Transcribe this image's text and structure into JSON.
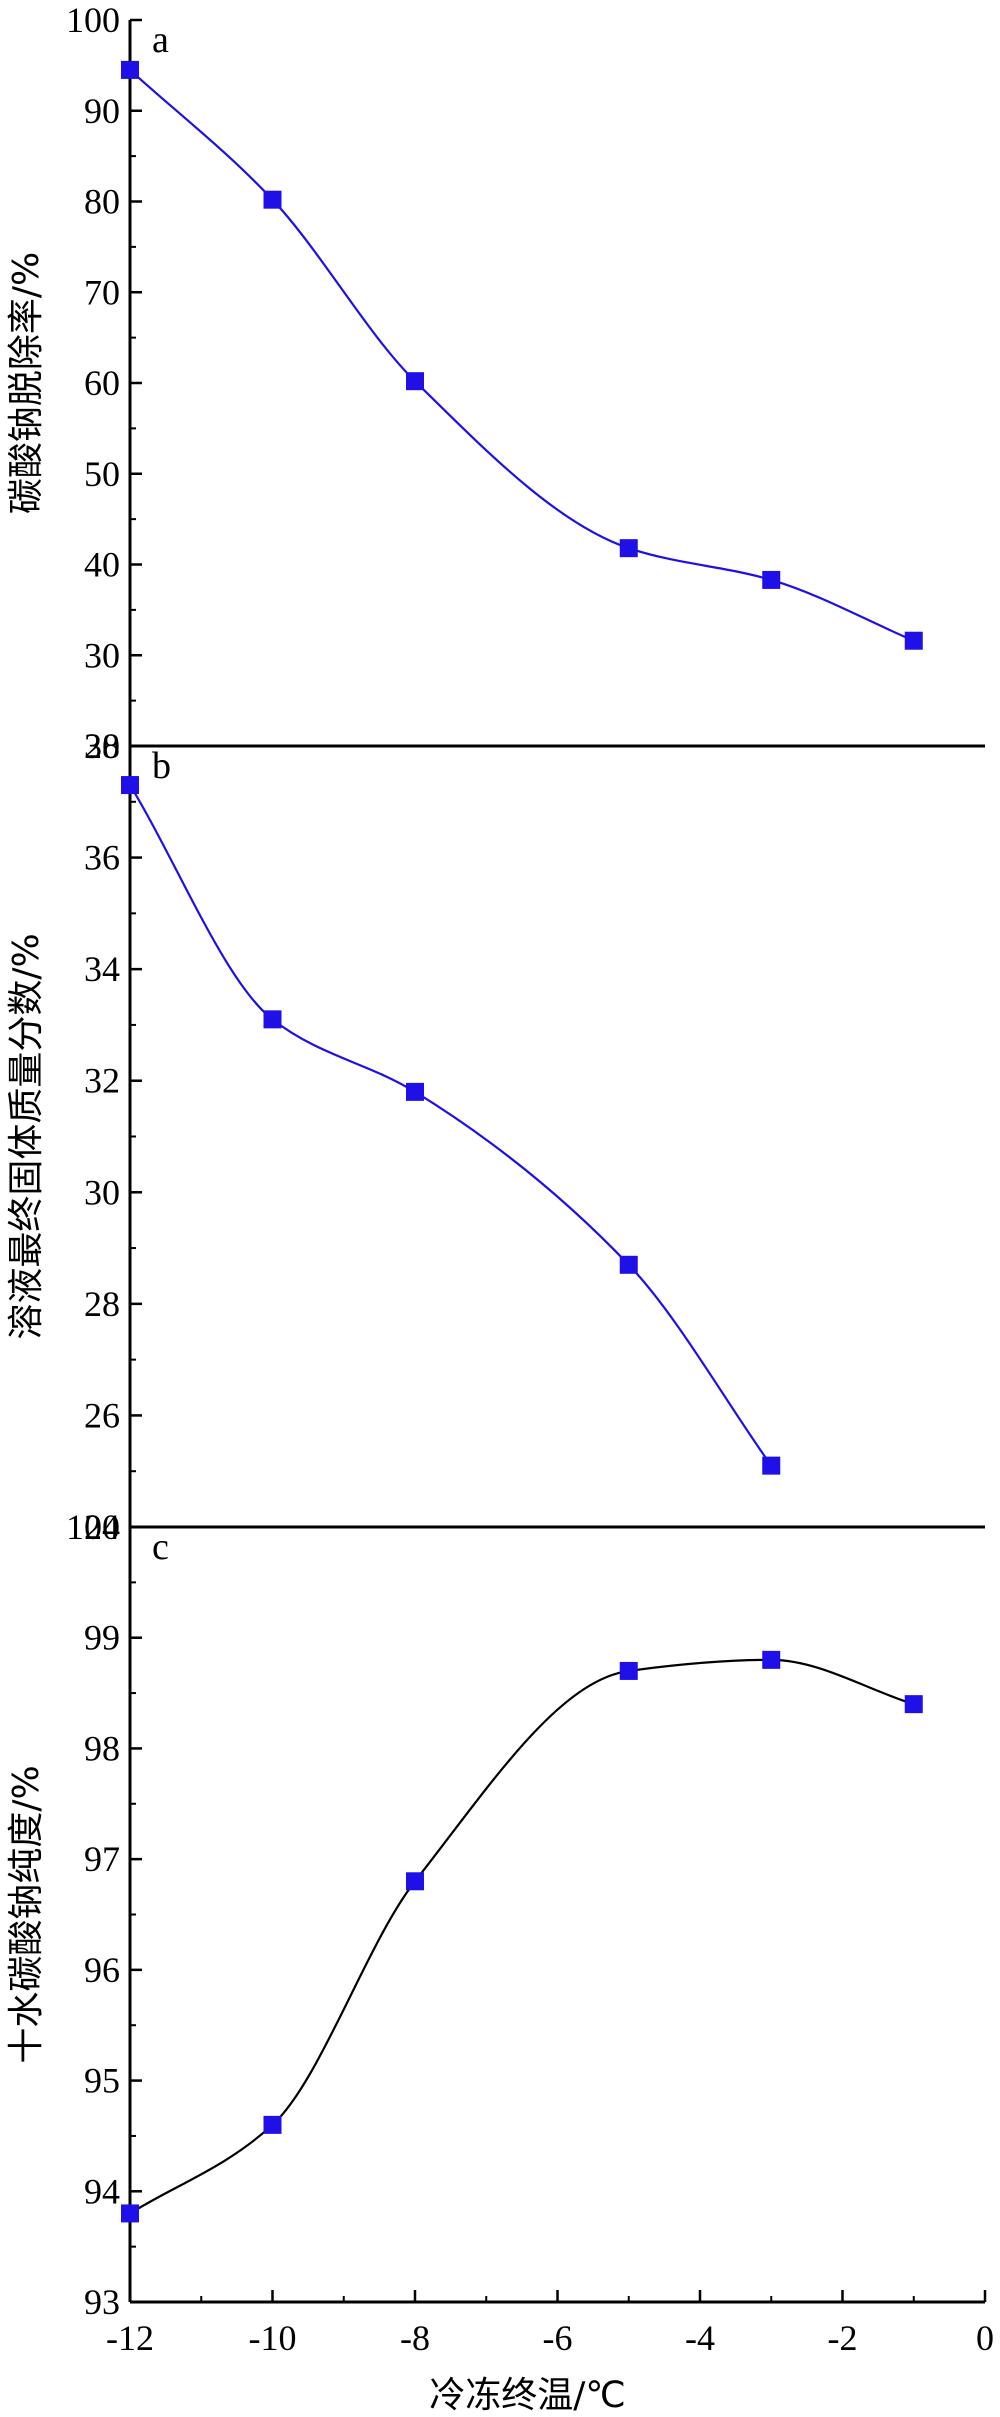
{
  "chart_data": [
    {
      "type": "scatter",
      "panel_label": "a",
      "ylabel": "碳酸钠脱除率/%",
      "xlim": [
        -12,
        0
      ],
      "ylim": [
        20,
        100
      ],
      "yticks": [
        20,
        30,
        40,
        50,
        60,
        70,
        80,
        90,
        100
      ],
      "x": [
        -12,
        -10,
        -8,
        -5,
        -3,
        -1
      ],
      "y": [
        94.5,
        80.2,
        60.2,
        41.8,
        38.3,
        31.6
      ],
      "marker_color": "#1f10e8",
      "curve_color": "#1f10e8",
      "fit_curve": true
    },
    {
      "type": "scatter",
      "panel_label": "b",
      "ylabel": "溶液最终固体质量分数/%",
      "xlim": [
        -12,
        0
      ],
      "ylim": [
        24,
        38
      ],
      "yticks": [
        24,
        26,
        28,
        30,
        32,
        34,
        36,
        38
      ],
      "x": [
        -12,
        -10,
        -8,
        -5,
        -3
      ],
      "y": [
        37.3,
        33.1,
        31.8,
        28.7,
        25.1
      ],
      "marker_color": "#1f10e8",
      "curve_color": "#1f10e8",
      "fit_curve": true
    },
    {
      "type": "scatter",
      "panel_label": "c",
      "ylabel": "十水碳酸钠纯度/%",
      "xlabel": "冷冻终温/℃",
      "xlim": [
        -12,
        0
      ],
      "ylim": [
        93,
        100
      ],
      "yticks": [
        93,
        94,
        95,
        96,
        97,
        98,
        99,
        100
      ],
      "xticks": [
        -12,
        -10,
        -8,
        -6,
        -4,
        -2,
        0
      ],
      "x": [
        -12,
        -10,
        -8,
        -5,
        -3,
        -1
      ],
      "y": [
        93.8,
        94.6,
        96.8,
        98.7,
        98.8,
        98.4
      ],
      "marker_color": "#1f10e8",
      "curve_color": "#000000",
      "fit_curve": true
    }
  ]
}
